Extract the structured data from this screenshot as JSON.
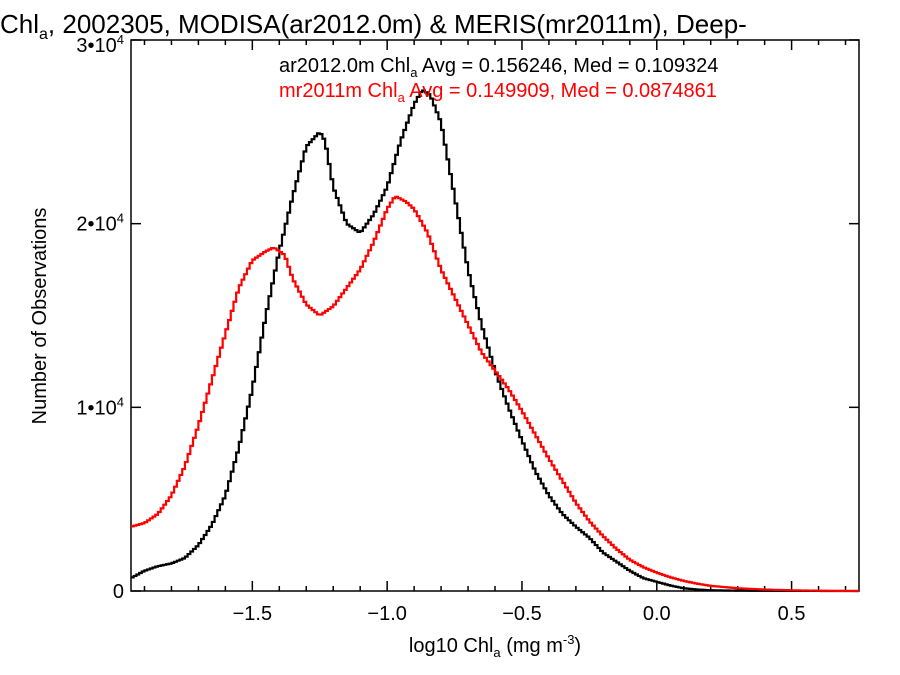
{
  "chart_data": {
    "type": "line",
    "title": "Chl",
    "title_sub": "a",
    "title_rest": ", 2002305, MODISA(ar2012.0m) & MERIS(mr2011m), Deep-",
    "xlabel_pre": "log10 Chl",
    "xlabel_sub": "a",
    "xlabel_post": " (mg m",
    "xlabel_sup": "-3",
    "xlabel_end": ")",
    "ylabel": "Number of Observations",
    "xlim": [
      -1.95,
      0.75
    ],
    "ylim": [
      0,
      30000
    ],
    "x_ticks": [
      {
        "value": -1.5,
        "label": "−1.5"
      },
      {
        "value": -1.0,
        "label": "−1.0"
      },
      {
        "value": -0.5,
        "label": "−0.5"
      },
      {
        "value": 0.0,
        "label": "0.0"
      },
      {
        "value": 0.5,
        "label": "0.5"
      }
    ],
    "y_ticks": [
      {
        "value": 0,
        "label": "0",
        "exp": ""
      },
      {
        "value": 10000,
        "label": "1•10",
        "exp": "4"
      },
      {
        "value": 20000,
        "label": "2•10",
        "exp": "4"
      },
      {
        "value": 30000,
        "label": "3•10",
        "exp": "4"
      }
    ],
    "annotations": [
      {
        "pre": "ar2012.0m Chl",
        "sub": "a",
        "post": " Avg = 0.156246, Med = 0.109324",
        "color": "#000000"
      },
      {
        "pre": "mr2011m Chl",
        "sub": "a",
        "post": " Avg = 0.149909, Med = 0.0874861",
        "color": "#ff0000"
      }
    ],
    "series": [
      {
        "color": "#000000",
        "x": [
          -1.95,
          -1.9,
          -1.85,
          -1.8,
          -1.75,
          -1.7,
          -1.65,
          -1.6,
          -1.55,
          -1.5,
          -1.45,
          -1.4,
          -1.35,
          -1.3,
          -1.25,
          -1.23,
          -1.2,
          -1.15,
          -1.1,
          -1.05,
          -1.0,
          -0.95,
          -0.9,
          -0.87,
          -0.84,
          -0.8,
          -0.75,
          -0.7,
          -0.65,
          -0.6,
          -0.55,
          -0.5,
          -0.45,
          -0.4,
          -0.35,
          -0.3,
          -0.25,
          -0.2,
          -0.15,
          -0.1,
          -0.05,
          0.0,
          0.05,
          0.1,
          0.15,
          0.2,
          0.3,
          0.4,
          0.5,
          0.6,
          0.75
        ],
        "y": [
          700,
          1100,
          1350,
          1500,
          1800,
          2500,
          3600,
          5200,
          7800,
          11000,
          15000,
          18500,
          21500,
          24200,
          25000,
          24500,
          22000,
          20000,
          19500,
          20500,
          22000,
          24500,
          26500,
          27300,
          27000,
          25500,
          21500,
          17500,
          14500,
          12000,
          10000,
          8200,
          6500,
          5200,
          4200,
          3500,
          2900,
          2100,
          1600,
          1100,
          700,
          500,
          300,
          150,
          80,
          40,
          20,
          10,
          5,
          2,
          0
        ]
      },
      {
        "color": "#ff0000",
        "x": [
          -1.95,
          -1.9,
          -1.85,
          -1.8,
          -1.75,
          -1.7,
          -1.65,
          -1.6,
          -1.55,
          -1.5,
          -1.45,
          -1.42,
          -1.38,
          -1.35,
          -1.3,
          -1.25,
          -1.2,
          -1.15,
          -1.1,
          -1.05,
          -1.0,
          -0.97,
          -0.93,
          -0.9,
          -0.85,
          -0.8,
          -0.75,
          -0.7,
          -0.65,
          -0.6,
          -0.55,
          -0.5,
          -0.45,
          -0.4,
          -0.35,
          -0.3,
          -0.25,
          -0.2,
          -0.15,
          -0.1,
          -0.05,
          0.0,
          0.05,
          0.1,
          0.15,
          0.2,
          0.3,
          0.4,
          0.5,
          0.6,
          0.75
        ],
        "y": [
          3500,
          3700,
          4200,
          5200,
          6800,
          9000,
          11500,
          14000,
          16500,
          18000,
          18500,
          18700,
          18300,
          17000,
          15600,
          15000,
          15500,
          16500,
          17500,
          19000,
          20800,
          21500,
          21200,
          20800,
          19500,
          17500,
          16000,
          14500,
          13000,
          12000,
          11000,
          9800,
          8500,
          7200,
          6000,
          4800,
          3800,
          3000,
          2300,
          1700,
          1300,
          1000,
          750,
          550,
          400,
          280,
          150,
          80,
          40,
          15,
          0
        ]
      }
    ]
  }
}
